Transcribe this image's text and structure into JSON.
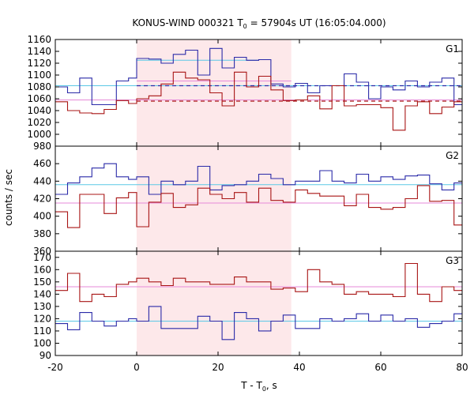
{
  "chart_data": {
    "type": "line",
    "title": "KONUS-WIND 000321 T",
    "title_sub": "0",
    "title_rest": " = 57904s UT (16:05:04.000)",
    "xlabel": "T - T",
    "xlabel_sub": "0",
    "xlabel_rest": ", s",
    "ylabel": "counts / sec",
    "xlim": [
      -20,
      80
    ],
    "x_ticks": [
      -20,
      0,
      20,
      40,
      60,
      80
    ],
    "shaded_interval": [
      0,
      38
    ],
    "colors": {
      "blue": "#2a2aa8",
      "red": "#a81414",
      "cyan": "#5cc8e6",
      "pink": "#e68ad8",
      "shade": "#fde8ea"
    },
    "panels": [
      {
        "label": "G1",
        "ylim": [
          980,
          1160
        ],
        "y_ticks": [
          980,
          1000,
          1020,
          1040,
          1060,
          1080,
          1100,
          1120,
          1140,
          1160
        ],
        "x_edges": [
          -20,
          -17,
          -14,
          -11,
          -8,
          -5,
          -2,
          0,
          3,
          6,
          9,
          12,
          15,
          18,
          21,
          24,
          27,
          30,
          33,
          36,
          39,
          42,
          45,
          48,
          51,
          54,
          57,
          60,
          63,
          66,
          69,
          72,
          75,
          78,
          80
        ],
        "series": [
          {
            "color_key": "blue",
            "values": [
              1080,
              1070,
              1095,
              1050,
              1050,
              1090,
              1095,
              1128,
              1127,
              1120,
              1135,
              1142,
              1100,
              1145,
              1112,
              1130,
              1125,
              1126,
              1085,
              1080,
              1086,
              1070,
              1082,
              1082,
              1102,
              1088,
              1060,
              1080,
              1075,
              1090,
              1080,
              1088,
              1095,
              1050
            ]
          },
          {
            "color_key": "red",
            "values": [
              1055,
              1040,
              1036,
              1035,
              1042,
              1057,
              1052,
              1060,
              1065,
              1085,
              1105,
              1095,
              1092,
              1070,
              1048,
              1105,
              1080,
              1098,
              1075,
              1057,
              1058,
              1065,
              1043,
              1082,
              1048,
              1050,
              1050,
              1045,
              1007,
              1048,
              1055,
              1035,
              1046,
              1055
            ]
          }
        ],
        "hlines": [
          {
            "color_key": "cyan",
            "value": 1082,
            "x_range": [
              -20,
              80
            ],
            "style": "solid"
          },
          {
            "color_key": "pink",
            "value": 1090,
            "x_range": [
              0,
              38
            ],
            "style": "solid"
          },
          {
            "color_key": "pink",
            "value": 1058,
            "x_range": [
              -20,
              80
            ],
            "style": "solid"
          },
          {
            "color_key": "cyan",
            "value": 1125,
            "x_range": [
              0,
              30
            ],
            "style": "solid"
          },
          {
            "color_key": "blue",
            "value": 1082,
            "x_range": [
              0,
              80
            ],
            "style": "dashed"
          },
          {
            "color_key": "red",
            "value": 1056,
            "x_range": [
              0,
              80
            ],
            "style": "dashed"
          }
        ]
      },
      {
        "label": "G2",
        "ylim": [
          360,
          480
        ],
        "y_ticks": [
          360,
          380,
          400,
          420,
          440,
          460
        ],
        "x_edges": [
          -20,
          -17,
          -14,
          -11,
          -8,
          -5,
          -2,
          0,
          3,
          6,
          9,
          12,
          15,
          18,
          21,
          24,
          27,
          30,
          33,
          36,
          39,
          42,
          45,
          48,
          51,
          54,
          57,
          60,
          63,
          66,
          69,
          72,
          75,
          78,
          80
        ],
        "series": [
          {
            "color_key": "blue",
            "values": [
              425,
              438,
              445,
              455,
              460,
              445,
              442,
              445,
              425,
              440,
              436,
              440,
              457,
              430,
              435,
              436,
              440,
              448,
              443,
              436,
              440,
              440,
              452,
              440,
              438,
              448,
              440,
              445,
              442,
              446,
              447,
              437,
              430,
              438
            ]
          },
          {
            "color_key": "red",
            "values": [
              405,
              387,
              425,
              425,
              403,
              421,
              427,
              388,
              416,
              426,
              410,
              413,
              432,
              425,
              420,
              427,
              416,
              432,
              418,
              416,
              430,
              426,
              423,
              423,
              412,
              425,
              410,
              408,
              410,
              420,
              435,
              417,
              418,
              390
            ]
          }
        ],
        "hlines": [
          {
            "color_key": "cyan",
            "value": 436,
            "x_range": [
              -20,
              80
            ],
            "style": "solid"
          },
          {
            "color_key": "pink",
            "value": 415,
            "x_range": [
              -20,
              80
            ],
            "style": "solid"
          }
        ]
      },
      {
        "label": "G3",
        "ylim": [
          90,
          175
        ],
        "y_ticks": [
          90,
          100,
          110,
          120,
          130,
          140,
          150,
          160,
          170
        ],
        "x_edges": [
          -20,
          -17,
          -14,
          -11,
          -8,
          -5,
          -2,
          0,
          3,
          6,
          9,
          12,
          15,
          18,
          21,
          24,
          27,
          30,
          33,
          36,
          39,
          42,
          45,
          48,
          51,
          54,
          57,
          60,
          63,
          66,
          69,
          72,
          75,
          78,
          80
        ],
        "series": [
          {
            "color_key": "blue",
            "values": [
              116,
              111,
              125,
              118,
              114,
              118,
              120,
              118,
              130,
              112,
              112,
              112,
              122,
              118,
              103,
              125,
              120,
              110,
              118,
              123,
              112,
              112,
              120,
              118,
              120,
              124,
              118,
              123,
              118,
              120,
              113,
              116,
              118,
              124
            ]
          },
          {
            "color_key": "red",
            "values": [
              143,
              157,
              134,
              140,
              138,
              148,
              150,
              153,
              150,
              147,
              153,
              150,
              150,
              148,
              148,
              154,
              150,
              150,
              144,
              145,
              142,
              160,
              150,
              148,
              140,
              142,
              140,
              140,
              138,
              165,
              140,
              134,
              146,
              143
            ]
          }
        ],
        "hlines": [
          {
            "color_key": "cyan",
            "value": 118,
            "x_range": [
              -20,
              80
            ],
            "style": "solid"
          },
          {
            "color_key": "pink",
            "value": 146,
            "x_range": [
              -20,
              80
            ],
            "style": "solid"
          }
        ]
      }
    ]
  }
}
